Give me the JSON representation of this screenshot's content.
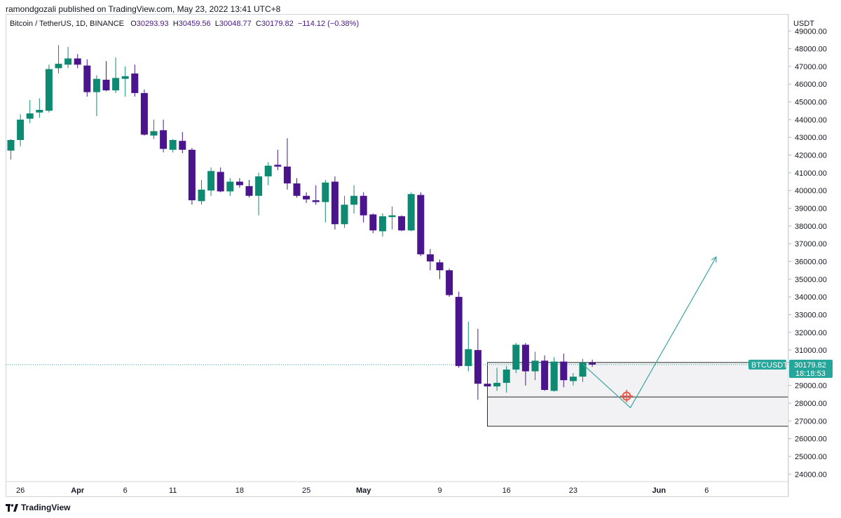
{
  "header": {
    "published": "ramondgozali published on TradingView.com, May 23, 2022 13:41 UTC+8"
  },
  "legend": {
    "symbol": "Bitcoin / TetherUS, 1D, BINANCE",
    "o_label": "O",
    "o": "30293.93",
    "h_label": "H",
    "h": "30459.56",
    "l_label": "L",
    "l": "30048.77",
    "c_label": "C",
    "c": "30179.82",
    "change": "−114.12 (−0.38%)"
  },
  "price_axis": {
    "currency": "USDT",
    "ticks": [
      "49000.00",
      "48000.00",
      "47000.00",
      "46000.00",
      "45000.00",
      "44000.00",
      "43000.00",
      "42000.00",
      "41000.00",
      "40000.00",
      "39000.00",
      "38000.00",
      "37000.00",
      "36000.00",
      "35000.00",
      "34000.00",
      "33000.00",
      "32000.00",
      "31000.00",
      "29000.00",
      "28000.00",
      "27000.00",
      "26000.00",
      "25000.00",
      "24000.00"
    ]
  },
  "last_price": {
    "symbol_badge": "BTCUSDT",
    "price": "30179.82",
    "countdown": "18:18:53"
  },
  "footer": {
    "brand": "TradingView"
  },
  "colors": {
    "up": "#26a69a",
    "up_body": "#0f8a72",
    "down": "#4a148c",
    "arrow": "#3aa6a0",
    "target": "#f0574a"
  },
  "chart_data": {
    "type": "candlestick",
    "x_ticks": [
      {
        "label": "26",
        "i": 1
      },
      {
        "label": "Apr",
        "i": 7
      },
      {
        "label": "6",
        "i": 12
      },
      {
        "label": "11",
        "i": 17
      },
      {
        "label": "18",
        "i": 24
      },
      {
        "label": "25",
        "i": 31
      },
      {
        "label": "May",
        "i": 37
      },
      {
        "label": "9",
        "i": 45
      },
      {
        "label": "16",
        "i": 52
      },
      {
        "label": "23",
        "i": 59
      },
      {
        "label": "Jun",
        "i": 68
      },
      {
        "label": "6",
        "i": 73
      }
    ],
    "candles": [
      {
        "o": 42250,
        "h": 42900,
        "l": 41750,
        "c": 42850
      },
      {
        "o": 42850,
        "h": 44300,
        "l": 42500,
        "c": 44000
      },
      {
        "o": 44050,
        "h": 45100,
        "l": 43800,
        "c": 44350
      },
      {
        "o": 44400,
        "h": 45200,
        "l": 44100,
        "c": 44550
      },
      {
        "o": 44500,
        "h": 47100,
        "l": 44400,
        "c": 46850
      },
      {
        "o": 46900,
        "h": 48200,
        "l": 46600,
        "c": 47150
      },
      {
        "o": 47100,
        "h": 48100,
        "l": 46900,
        "c": 47450
      },
      {
        "o": 47450,
        "h": 47700,
        "l": 46900,
        "c": 47100
      },
      {
        "o": 47050,
        "h": 47400,
        "l": 45300,
        "c": 45550
      },
      {
        "o": 45550,
        "h": 46500,
        "l": 44200,
        "c": 46300
      },
      {
        "o": 46250,
        "h": 47300,
        "l": 45600,
        "c": 45650
      },
      {
        "o": 45650,
        "h": 47500,
        "l": 45500,
        "c": 46350
      },
      {
        "o": 46300,
        "h": 47000,
        "l": 45300,
        "c": 46450
      },
      {
        "o": 46600,
        "h": 47100,
        "l": 45300,
        "c": 45500
      },
      {
        "o": 45500,
        "h": 45700,
        "l": 43100,
        "c": 43150
      },
      {
        "o": 43100,
        "h": 44000,
        "l": 42900,
        "c": 43350
      },
      {
        "o": 43400,
        "h": 44000,
        "l": 42150,
        "c": 42350
      },
      {
        "o": 42300,
        "h": 42900,
        "l": 42150,
        "c": 42850
      },
      {
        "o": 42800,
        "h": 43300,
        "l": 42100,
        "c": 42300
      },
      {
        "o": 42300,
        "h": 42400,
        "l": 39200,
        "c": 39450
      },
      {
        "o": 39400,
        "h": 40600,
        "l": 39200,
        "c": 40050
      },
      {
        "o": 40000,
        "h": 41300,
        "l": 39700,
        "c": 41100
      },
      {
        "o": 41050,
        "h": 41300,
        "l": 39900,
        "c": 39950
      },
      {
        "o": 39950,
        "h": 40700,
        "l": 39700,
        "c": 40500
      },
      {
        "o": 40500,
        "h": 40700,
        "l": 40150,
        "c": 40300
      },
      {
        "o": 40250,
        "h": 40600,
        "l": 39600,
        "c": 39700
      },
      {
        "o": 39700,
        "h": 41000,
        "l": 38600,
        "c": 40800
      },
      {
        "o": 40800,
        "h": 41600,
        "l": 40300,
        "c": 41400
      },
      {
        "o": 41450,
        "h": 42300,
        "l": 41150,
        "c": 41350
      },
      {
        "o": 41350,
        "h": 42950,
        "l": 40050,
        "c": 40400
      },
      {
        "o": 40400,
        "h": 40700,
        "l": 39600,
        "c": 39700
      },
      {
        "o": 39700,
        "h": 39900,
        "l": 39300,
        "c": 39500
      },
      {
        "o": 39450,
        "h": 40300,
        "l": 39200,
        "c": 39350
      },
      {
        "o": 39350,
        "h": 40600,
        "l": 38200,
        "c": 40450
      },
      {
        "o": 40500,
        "h": 40800,
        "l": 37800,
        "c": 38100
      },
      {
        "o": 38100,
        "h": 39700,
        "l": 37900,
        "c": 39200
      },
      {
        "o": 39200,
        "h": 40300,
        "l": 38700,
        "c": 39700
      },
      {
        "o": 39700,
        "h": 39900,
        "l": 38200,
        "c": 38600
      },
      {
        "o": 38650,
        "h": 38700,
        "l": 37600,
        "c": 37750
      },
      {
        "o": 37700,
        "h": 38700,
        "l": 37400,
        "c": 38550
      },
      {
        "o": 38500,
        "h": 39100,
        "l": 37800,
        "c": 38600
      },
      {
        "o": 38550,
        "h": 38600,
        "l": 37700,
        "c": 37750
      },
      {
        "o": 37750,
        "h": 39900,
        "l": 37700,
        "c": 39800
      },
      {
        "o": 39750,
        "h": 39900,
        "l": 36300,
        "c": 36400
      },
      {
        "o": 36400,
        "h": 36700,
        "l": 35500,
        "c": 36000
      },
      {
        "o": 35950,
        "h": 36100,
        "l": 35000,
        "c": 35500
      },
      {
        "o": 35500,
        "h": 35600,
        "l": 34000,
        "c": 34100
      },
      {
        "o": 34000,
        "h": 34300,
        "l": 30000,
        "c": 30100
      },
      {
        "o": 30100,
        "h": 32600,
        "l": 29800,
        "c": 31050
      },
      {
        "o": 31000,
        "h": 32200,
        "l": 28200,
        "c": 29100
      },
      {
        "o": 29100,
        "h": 29200,
        "l": 27750,
        "c": 28950
      },
      {
        "o": 28950,
        "h": 30000,
        "l": 28700,
        "c": 29150
      },
      {
        "o": 29150,
        "h": 30100,
        "l": 28600,
        "c": 29900
      },
      {
        "o": 29900,
        "h": 31400,
        "l": 29700,
        "c": 31300
      },
      {
        "o": 31300,
        "h": 31400,
        "l": 29000,
        "c": 29800
      },
      {
        "o": 29800,
        "h": 30900,
        "l": 29300,
        "c": 30400
      },
      {
        "o": 30400,
        "h": 30700,
        "l": 28700,
        "c": 28750
      },
      {
        "o": 28700,
        "h": 30600,
        "l": 28650,
        "c": 30350
      },
      {
        "o": 30350,
        "h": 30800,
        "l": 28900,
        "c": 29300
      },
      {
        "o": 29250,
        "h": 29700,
        "l": 29000,
        "c": 29500
      },
      {
        "o": 29500,
        "h": 30500,
        "l": 29200,
        "c": 30300
      },
      {
        "o": 30293.93,
        "h": 30459.56,
        "l": 30048.77,
        "c": 30179.82
      }
    ],
    "zone": {
      "start_i": 50,
      "top": 30300,
      "mid": 28350,
      "bottom": 26700
    },
    "projection": [
      {
        "i": 60,
        "price": 30200
      },
      {
        "i": 65,
        "price": 27750
      },
      {
        "i": 74,
        "price": 36250
      }
    ],
    "target_marker": {
      "i": 64.6,
      "price": 28400
    },
    "ylim": [
      23500,
      49800
    ],
    "last_price_line": 30179.82
  }
}
